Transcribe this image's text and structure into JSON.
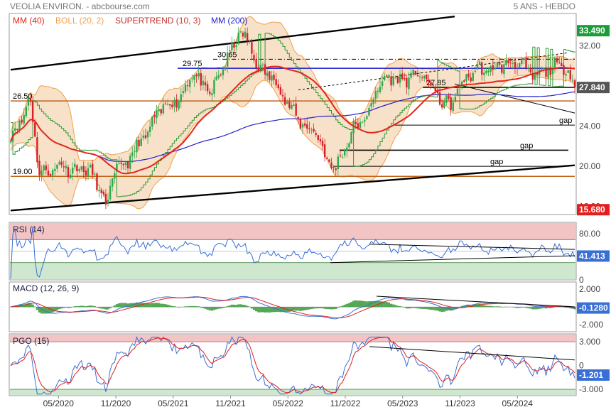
{
  "header": {
    "left": "VEOLIA ENVIRON. - abcbourse.com",
    "right": "5 ANS - HEBDO"
  },
  "colors": {
    "mm40": "#e32619",
    "boll": "#f0a04b",
    "boll_fill": "#f6dcc0",
    "supertrend": "#c0352b",
    "mm200": "#2222cc",
    "rsi_line": "#3a6fd6",
    "macd": "#3a6fd6",
    "macd_signal": "#dd2222",
    "macd_hist": "#54a654",
    "pgo": "#3a6fd6",
    "pgo_signal": "#dd2222",
    "price_tag_up": "#1a9c36",
    "price_tag_down": "#e31e1e",
    "price_tag_last": "#555555",
    "ind_tag": "#3a6fd6",
    "zone_red": "#f2c4c4",
    "zone_green": "#cfe6cf"
  },
  "chart_data": [
    {
      "type": "candlestick",
      "title": "VEOLIA ENVIRON.",
      "legend": [
        {
          "label": "MM (40)",
          "color": "#e32619"
        },
        {
          "label": "BOLL (20, 2)",
          "color": "#f0a04b"
        },
        {
          "label": "SUPERTREND (10, 3)",
          "color": "#c0352b"
        },
        {
          "label": "MM (200)",
          "color": "#2222cc"
        }
      ],
      "x_ticks": [
        "05/2020",
        "11/2020",
        "05/2021",
        "11/2021",
        "05/2022",
        "11/2022",
        "05/2023",
        "11/2023",
        "05/2024"
      ],
      "y_ticks": [
        16.0,
        20.0,
        24.0,
        28.0,
        32.0
      ],
      "y_ticks_shown": [
        "32.00",
        "28.00",
        "24.00",
        "20.00",
        "16.00"
      ],
      "ylim": [
        15.2,
        35.2
      ],
      "price_tags": [
        {
          "label": "33.490",
          "value": 33.49,
          "kind": "up"
        },
        {
          "label": "27.840",
          "value": 27.84,
          "kind": "last"
        },
        {
          "label": "15.680",
          "value": 15.68,
          "kind": "down"
        }
      ],
      "levels": [
        {
          "label": "26.50",
          "value": 26.5
        },
        {
          "label": "19.00",
          "value": 19.0
        }
      ],
      "annotations": [
        {
          "label": "30.65",
          "value": 30.65
        },
        {
          "label": "29.75",
          "value": 29.75
        },
        {
          "label": "27.85",
          "value": 27.85
        },
        {
          "label": "gap",
          "value": 24.1
        },
        {
          "label": "gap",
          "value": 21.6
        },
        {
          "label": "gap",
          "value": 20.0
        }
      ],
      "close_path": [
        {
          "date": "2019-12",
          "value": 23.0
        },
        {
          "date": "2020-01",
          "value": 24.4
        },
        {
          "date": "2020-02",
          "value": 26.9
        },
        {
          "date": "2020-03",
          "value": 19.5
        },
        {
          "date": "2020-04",
          "value": 19.4
        },
        {
          "date": "2020-05",
          "value": 20.2
        },
        {
          "date": "2020-06",
          "value": 19.8
        },
        {
          "date": "2020-07",
          "value": 19.7
        },
        {
          "date": "2020-08",
          "value": 19.8
        },
        {
          "date": "2020-09",
          "value": 18.4
        },
        {
          "date": "2020-10",
          "value": 16.0
        },
        {
          "date": "2020-11",
          "value": 19.9
        },
        {
          "date": "2020-12",
          "value": 20.1
        },
        {
          "date": "2021-01",
          "value": 21.7
        },
        {
          "date": "2021-02",
          "value": 22.9
        },
        {
          "date": "2021-03",
          "value": 24.6
        },
        {
          "date": "2021-04",
          "value": 26.1
        },
        {
          "date": "2021-05",
          "value": 26.3
        },
        {
          "date": "2021-06",
          "value": 27.2
        },
        {
          "date": "2021-07",
          "value": 29.5
        },
        {
          "date": "2021-08",
          "value": 28.0
        },
        {
          "date": "2021-09",
          "value": 27.2
        },
        {
          "date": "2021-10",
          "value": 29.6
        },
        {
          "date": "2021-11",
          "value": 31.3
        },
        {
          "date": "2021-12",
          "value": 33.5
        },
        {
          "date": "2022-01",
          "value": 32.0
        },
        {
          "date": "2022-02",
          "value": 29.5
        },
        {
          "date": "2022-03",
          "value": 29.2
        },
        {
          "date": "2022-04",
          "value": 28.0
        },
        {
          "date": "2022-05",
          "value": 26.1
        },
        {
          "date": "2022-06",
          "value": 24.8
        },
        {
          "date": "2022-07",
          "value": 23.7
        },
        {
          "date": "2022-08",
          "value": 23.5
        },
        {
          "date": "2022-09",
          "value": 20.6
        },
        {
          "date": "2022-10",
          "value": 19.8
        },
        {
          "date": "2022-11",
          "value": 22.0
        },
        {
          "date": "2022-12",
          "value": 24.0
        },
        {
          "date": "2023-01",
          "value": 24.5
        },
        {
          "date": "2023-02",
          "value": 27.0
        },
        {
          "date": "2023-03",
          "value": 28.6
        },
        {
          "date": "2023-04",
          "value": 28.9
        },
        {
          "date": "2023-05",
          "value": 28.4
        },
        {
          "date": "2023-06",
          "value": 29.0
        },
        {
          "date": "2023-07",
          "value": 29.1
        },
        {
          "date": "2023-08",
          "value": 28.0
        },
        {
          "date": "2023-09",
          "value": 26.5
        },
        {
          "date": "2023-10",
          "value": 26.0
        },
        {
          "date": "2023-11",
          "value": 28.0
        },
        {
          "date": "2023-12",
          "value": 29.1
        },
        {
          "date": "2024-01",
          "value": 29.8
        },
        {
          "date": "2024-02",
          "value": 29.3
        },
        {
          "date": "2024-03",
          "value": 30.1
        },
        {
          "date": "2024-04",
          "value": 30.0
        },
        {
          "date": "2024-05",
          "value": 30.6
        },
        {
          "date": "2024-06",
          "value": 29.4
        },
        {
          "date": "2024-07",
          "value": 28.9
        },
        {
          "date": "2024-08",
          "value": 29.6
        },
        {
          "date": "2024-09",
          "value": 29.9
        },
        {
          "date": "2024-10",
          "value": 30.0
        },
        {
          "date": "2024-11",
          "value": 27.84
        }
      ]
    },
    {
      "type": "line",
      "title": "RSI (14)",
      "y_ticks_shown": [
        "80.00",
        "40.00",
        "0"
      ],
      "ylim": [
        0,
        100
      ],
      "zones": {
        "overbought": 70,
        "oversold": 30
      },
      "last_value": "41.413"
    },
    {
      "type": "line",
      "title": "MACD (12, 26, 9)",
      "y_ticks_shown": [
        "2.000",
        "0",
        "-2.000"
      ],
      "ylim": [
        -2.8,
        2.8
      ],
      "last_value": "-0.1280"
    },
    {
      "type": "line",
      "title": "PGO (15)",
      "y_ticks_shown": [
        "3.000",
        "0",
        "-3.000"
      ],
      "ylim": [
        -3.8,
        4.0
      ],
      "zones": {
        "overbought": 3.0,
        "oversold": -3.0
      },
      "last_value": "-1.201"
    }
  ]
}
